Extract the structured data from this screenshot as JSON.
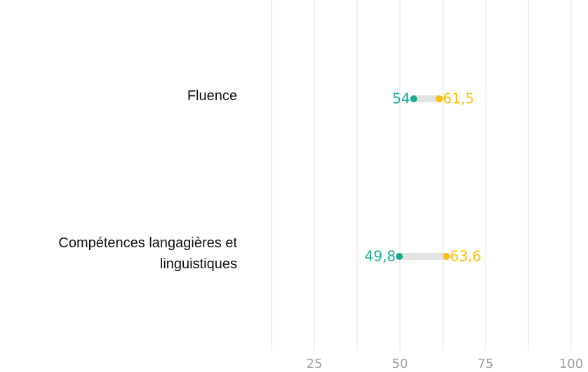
{
  "chart_data": {
    "type": "dumbbell",
    "categories": [
      "Fluence",
      "Compétences langagières et linguistiques"
    ],
    "series": [
      {
        "color": "#1aab95",
        "values": [
          54,
          49.8
        ],
        "value_labels": [
          "54",
          "49,8"
        ]
      },
      {
        "color": "#fbbf0e",
        "values": [
          61.5,
          63.6
        ],
        "value_labels": [
          "61,5",
          "63,6"
        ]
      }
    ],
    "connector_color": "#e3e3e3",
    "xlim": [
      12.5,
      100
    ],
    "xticks": [
      25,
      50,
      75,
      100
    ],
    "minor_xticks": [
      12.5,
      37.5,
      62.5,
      87.5
    ],
    "grid": true
  }
}
